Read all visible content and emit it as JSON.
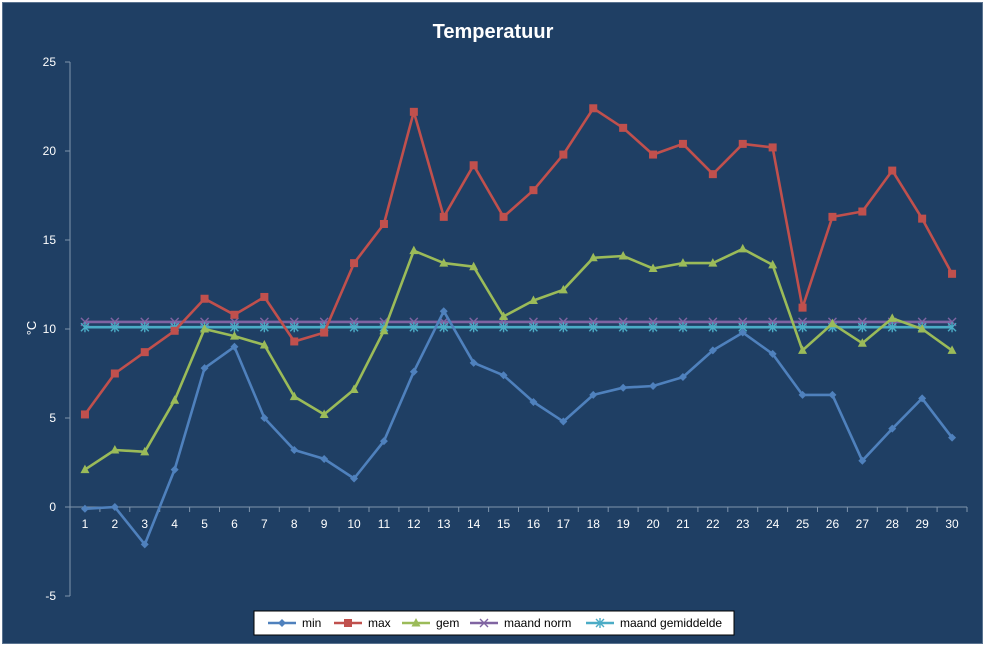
{
  "chart_data": {
    "type": "line",
    "title": "Temperatuur",
    "xlabel": "",
    "ylabel": "°C",
    "categories": [
      "1",
      "2",
      "3",
      "4",
      "5",
      "6",
      "7",
      "8",
      "9",
      "10",
      "11",
      "12",
      "13",
      "14",
      "15",
      "16",
      "17",
      "18",
      "19",
      "20",
      "21",
      "22",
      "23",
      "24",
      "25",
      "26",
      "27",
      "28",
      "29",
      "30"
    ],
    "ylim": [
      -5,
      25
    ],
    "yticks": [
      "-5",
      "0",
      "5",
      "10",
      "15",
      "20",
      "25"
    ],
    "grid": false,
    "legend_position": "bottom",
    "series": [
      {
        "name": "min",
        "color": "#4f81bd",
        "marker": "diamond",
        "values": [
          -0.1,
          0.0,
          -2.1,
          2.1,
          7.8,
          9.0,
          5.0,
          3.2,
          2.7,
          1.6,
          3.7,
          7.6,
          11.0,
          8.1,
          7.4,
          5.9,
          4.8,
          6.3,
          6.7,
          6.8,
          7.3,
          8.8,
          9.8,
          8.6,
          6.3,
          6.3,
          2.6,
          4.4,
          6.1,
          3.9
        ]
      },
      {
        "name": "max",
        "color": "#c0504d",
        "marker": "square",
        "values": [
          5.2,
          7.5,
          8.7,
          9.9,
          11.7,
          10.8,
          11.8,
          9.3,
          9.8,
          13.7,
          15.9,
          22.2,
          16.3,
          19.2,
          16.3,
          17.8,
          19.8,
          22.4,
          21.3,
          19.8,
          20.4,
          18.7,
          20.4,
          20.2,
          11.2,
          16.3,
          16.6,
          18.9,
          16.2,
          13.1
        ]
      },
      {
        "name": "gem",
        "color": "#9bbb59",
        "marker": "triangle",
        "values": [
          2.1,
          3.2,
          3.1,
          6.0,
          10.0,
          9.6,
          9.1,
          6.2,
          5.2,
          6.6,
          9.9,
          14.4,
          13.7,
          13.5,
          10.7,
          11.6,
          12.2,
          14.0,
          14.1,
          13.4,
          13.7,
          13.7,
          14.5,
          13.6,
          8.8,
          10.3,
          9.2,
          10.6,
          10.0,
          8.8
        ]
      },
      {
        "name": "maand norm",
        "color": "#8064a2",
        "marker": "x",
        "values": [
          10.4,
          10.4,
          10.4,
          10.4,
          10.4,
          10.4,
          10.4,
          10.4,
          10.4,
          10.4,
          10.4,
          10.4,
          10.4,
          10.4,
          10.4,
          10.4,
          10.4,
          10.4,
          10.4,
          10.4,
          10.4,
          10.4,
          10.4,
          10.4,
          10.4,
          10.4,
          10.4,
          10.4,
          10.4,
          10.4
        ]
      },
      {
        "name": "maand gemiddelde",
        "color": "#4bacc6",
        "marker": "star",
        "values": [
          10.1,
          10.1,
          10.1,
          10.1,
          10.1,
          10.1,
          10.1,
          10.1,
          10.1,
          10.1,
          10.1,
          10.1,
          10.1,
          10.1,
          10.1,
          10.1,
          10.1,
          10.1,
          10.1,
          10.1,
          10.1,
          10.1,
          10.1,
          10.1,
          10.1,
          10.1,
          10.1,
          10.1,
          10.1,
          10.1
        ]
      }
    ]
  }
}
